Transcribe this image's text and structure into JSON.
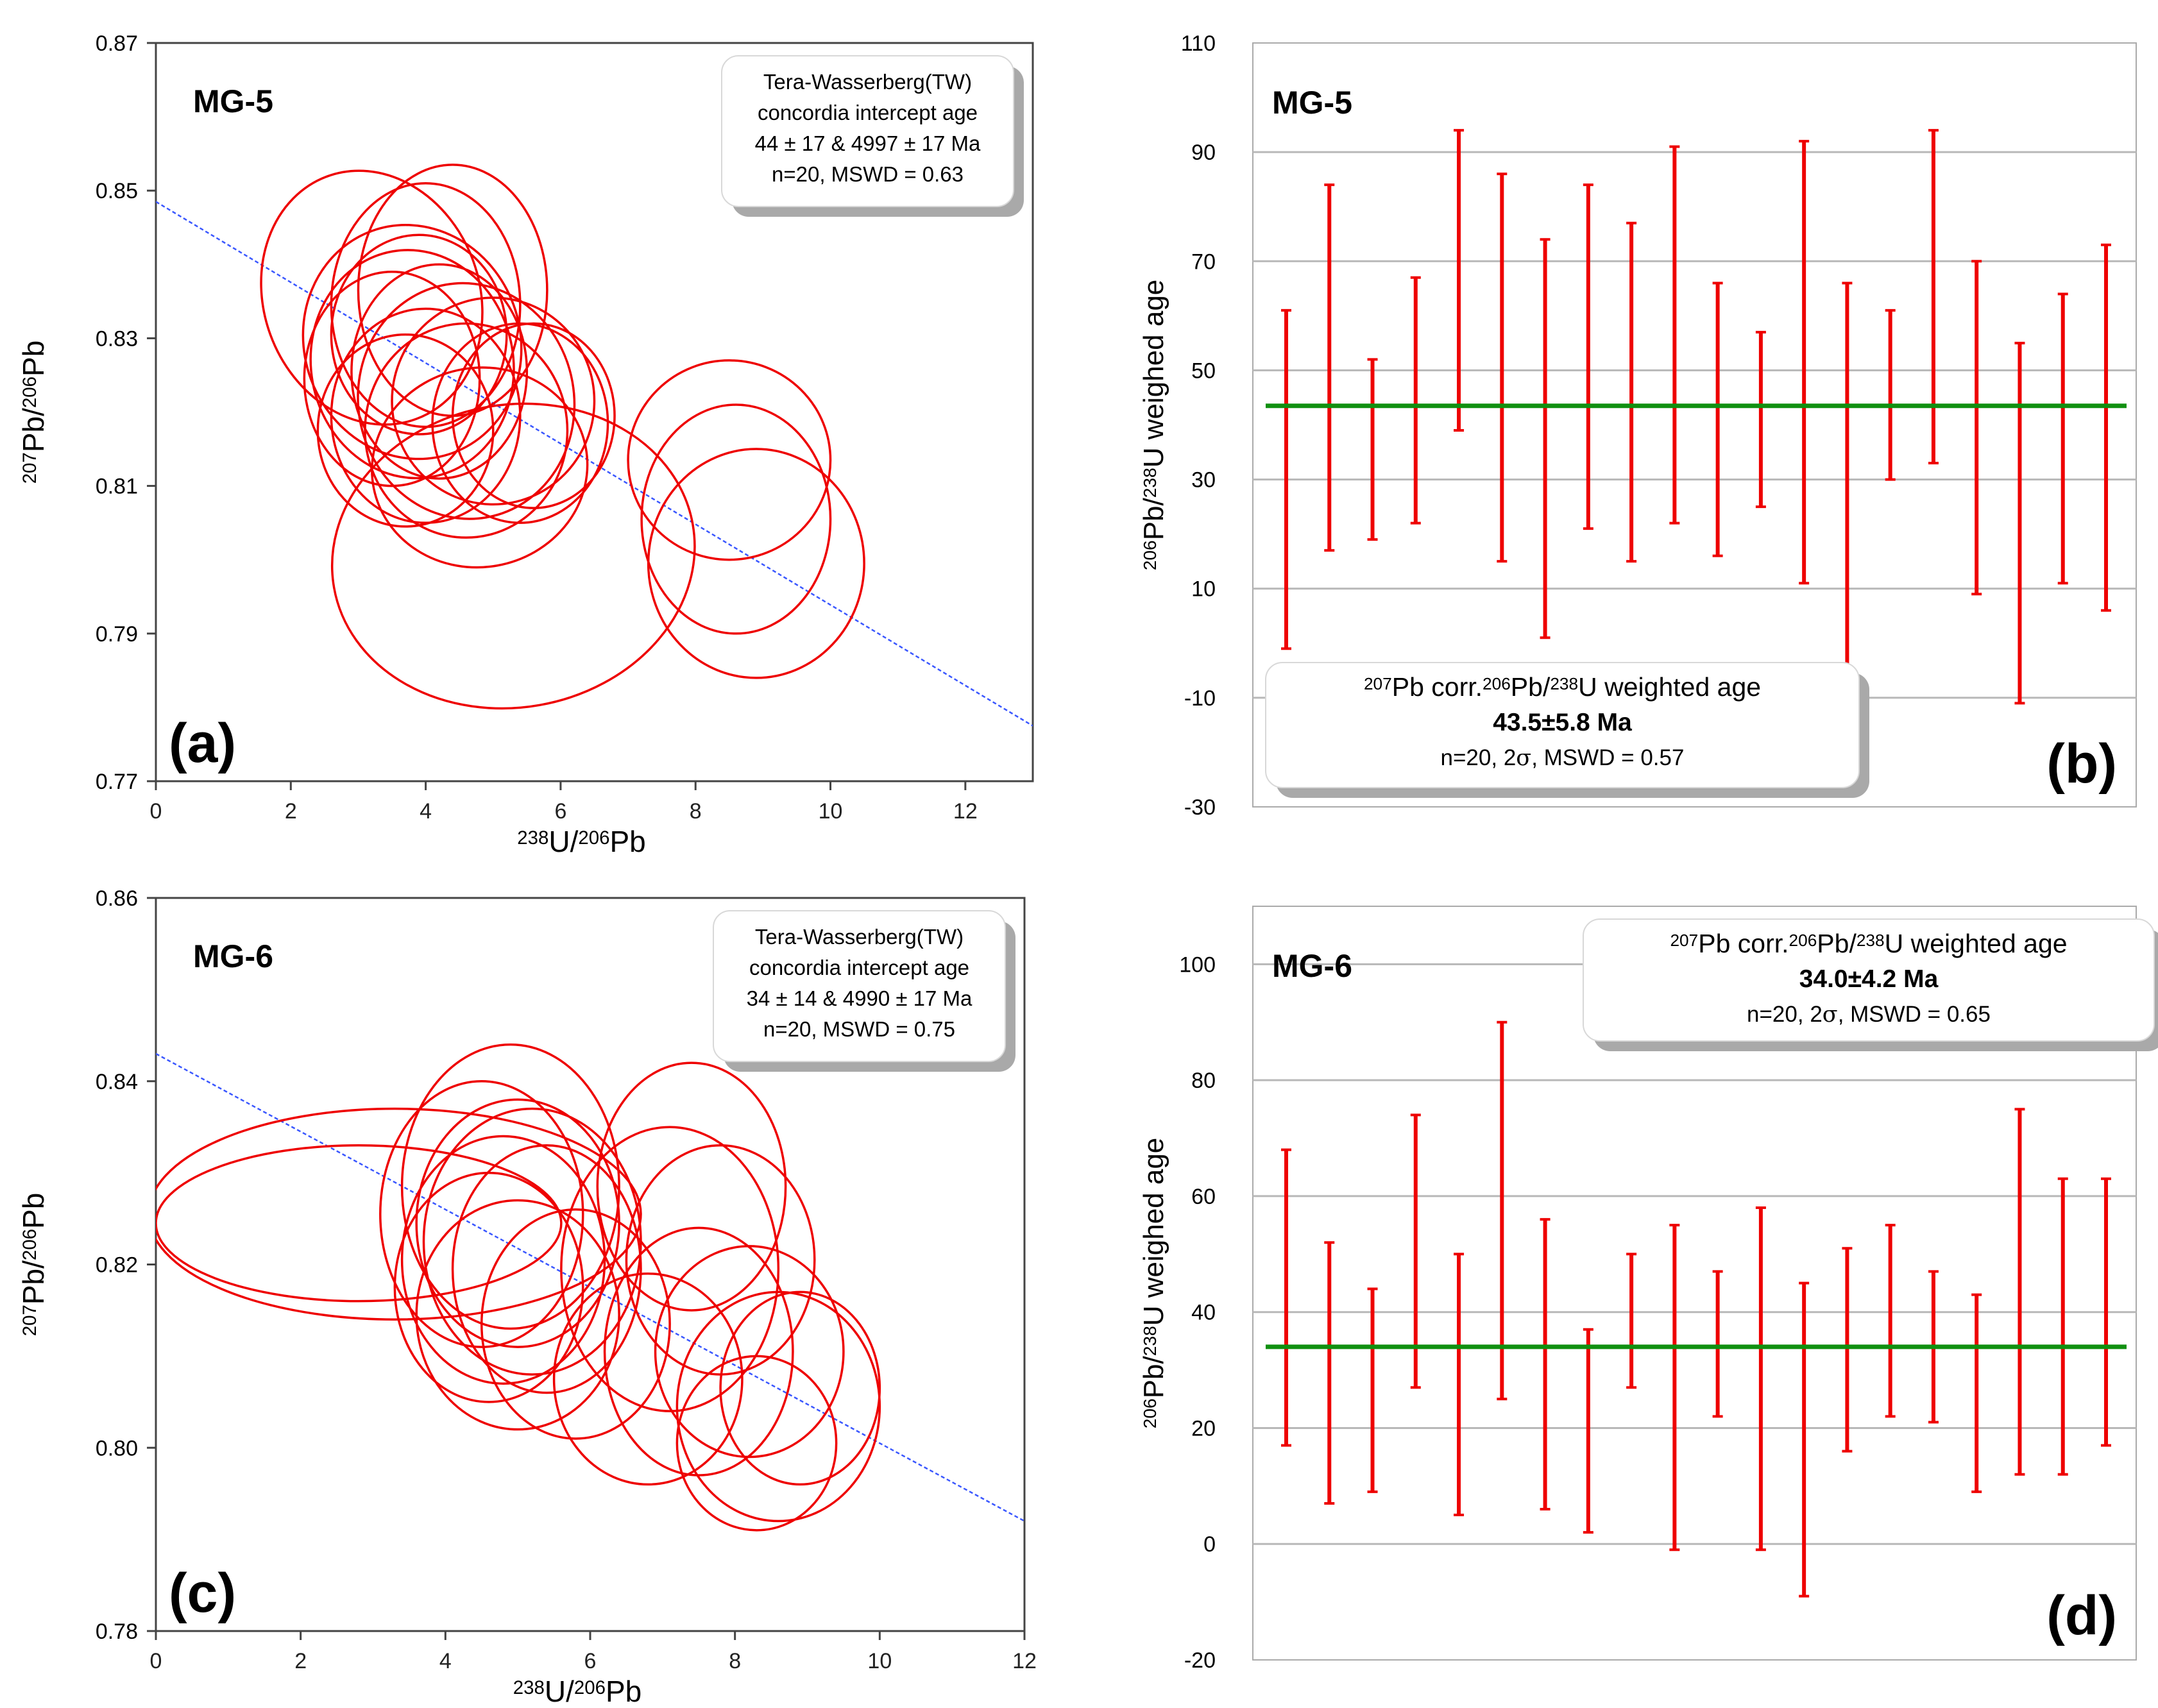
{
  "panels": [
    {
      "id": "a",
      "type": "concordia",
      "sample": "MG-5",
      "panel_label": "(a)",
      "ylabel": [
        "207",
        "Pb/",
        "206",
        "Pb"
      ],
      "xlabel": [
        "238",
        "U/",
        "206",
        "Pb"
      ],
      "xlim": [
        0,
        13
      ],
      "ylim": [
        0.77,
        0.87
      ],
      "xticks": [
        0,
        2,
        4,
        6,
        8,
        10,
        12
      ],
      "yticks": [
        "0.77",
        "0.79",
        "0.81",
        "0.83",
        "0.85",
        "0.87"
      ],
      "ytick_values": [
        0.77,
        0.79,
        0.81,
        0.83,
        0.85,
        0.87
      ],
      "annotation": [
        "Tera-Wasserberg(TW)",
        "concordia intercept age",
        "44 ± 17 & 4997 ± 17 Ma",
        "n=20, MSWD = 0.63"
      ],
      "line": [
        [
          0,
          0.8485
        ],
        [
          13,
          0.7775
        ]
      ],
      "line_color": "#3a57ff",
      "ellipse_color": "#ee0000",
      "ellipses": [
        [
          3.2,
          0.8355,
          1.6,
          0.0175,
          -20
        ],
        [
          3.8,
          0.8295,
          1.6,
          0.016,
          -20
        ],
        [
          4.4,
          0.8365,
          1.4,
          0.017,
          0
        ],
        [
          4.0,
          0.8345,
          1.4,
          0.0165,
          0
        ],
        [
          3.5,
          0.8245,
          1.3,
          0.0145,
          0
        ],
        [
          3.8,
          0.8265,
          1.5,
          0.0155,
          -10
        ],
        [
          4.2,
          0.8255,
          1.3,
          0.0145,
          0
        ],
        [
          4.6,
          0.8215,
          1.6,
          0.016,
          -10
        ],
        [
          4.0,
          0.8195,
          1.4,
          0.0145,
          0
        ],
        [
          3.7,
          0.8175,
          1.3,
          0.013,
          0
        ],
        [
          3.9,
          0.8305,
          1.3,
          0.0135,
          0
        ],
        [
          4.6,
          0.8175,
          1.5,
          0.0145,
          0
        ],
        [
          5.0,
          0.8215,
          1.5,
          0.014,
          0
        ],
        [
          5.4,
          0.8185,
          1.3,
          0.0135,
          0
        ],
        [
          5.6,
          0.8195,
          1.2,
          0.0125,
          0
        ],
        [
          5.3,
          0.8005,
          2.7,
          0.0205,
          -10
        ],
        [
          4.8,
          0.8125,
          1.6,
          0.0135,
          -10
        ],
        [
          8.5,
          0.8135,
          1.5,
          0.0135,
          0
        ],
        [
          8.6,
          0.8055,
          1.4,
          0.0155,
          0
        ],
        [
          8.9,
          0.7995,
          1.6,
          0.0155,
          0
        ]
      ]
    },
    {
      "id": "b",
      "type": "weighted_age",
      "sample": "MG-5",
      "panel_label": "(b)",
      "ylabel": [
        "206",
        "Pb/",
        "238",
        "U weighed age"
      ],
      "ylim": [
        -30,
        110
      ],
      "yticks": [
        "-30",
        "-10",
        "10",
        "30",
        "50",
        "70",
        "90",
        "110"
      ],
      "ytick_values": [
        -30,
        -10,
        10,
        30,
        50,
        70,
        90,
        110
      ],
      "annotation_title": [
        "207",
        "Pb corr.",
        "206",
        "Pb/",
        "238",
        "U weighted age"
      ],
      "annotation_value": "43.5±5.8 Ma",
      "annotation_stats": [
        "n=20, 2",
        "σ",
        ", MSWD = 0.57"
      ],
      "mean_age": 43.5,
      "bar_color": "#ee0000",
      "mean_color": "#109010",
      "bars": [
        [
          -1,
          61
        ],
        [
          17,
          84
        ],
        [
          19,
          52
        ],
        [
          22,
          67
        ],
        [
          39,
          94
        ],
        [
          15,
          86
        ],
        [
          1,
          74
        ],
        [
          21,
          84
        ],
        [
          15,
          77
        ],
        [
          22,
          91
        ],
        [
          16,
          66
        ],
        [
          25,
          57
        ],
        [
          11,
          92
        ],
        [
          -9,
          66
        ],
        [
          30,
          61
        ],
        [
          33,
          94
        ],
        [
          9,
          70
        ],
        [
          -11,
          55
        ],
        [
          11,
          64
        ],
        [
          6,
          73
        ]
      ]
    },
    {
      "id": "c",
      "type": "concordia",
      "sample": "MG-6",
      "panel_label": "(c)",
      "ylabel": [
        "207",
        "Pb/",
        "206",
        "Pb"
      ],
      "xlabel": [
        "238",
        "U/",
        "206",
        "Pb"
      ],
      "xlim": [
        0,
        12
      ],
      "ylim": [
        0.78,
        0.86
      ],
      "xticks": [
        0,
        2,
        4,
        6,
        8,
        10,
        12
      ],
      "yticks": [
        "0.78",
        "0.80",
        "0.82",
        "0.84",
        "0.86"
      ],
      "ytick_values": [
        0.78,
        0.8,
        0.82,
        0.84,
        0.86
      ],
      "annotation": [
        "Tera-Wasserberg(TW)",
        "concordia intercept age",
        "34 ± 14 & 4990 ± 17 Ma",
        "n=20, MSWD = 0.75"
      ],
      "line": [
        [
          0,
          0.843
        ],
        [
          12,
          0.792
        ]
      ],
      "line_color": "#3a57ff",
      "ellipse_color": "#ee0000",
      "ellipses": [
        [
          3.3,
          0.8255,
          3.4,
          0.0115,
          0
        ],
        [
          2.8,
          0.8245,
          2.8,
          0.0085,
          0
        ],
        [
          4.9,
          0.8285,
          1.5,
          0.0155,
          0
        ],
        [
          4.5,
          0.8255,
          1.4,
          0.0145,
          0
        ],
        [
          4.8,
          0.8205,
          1.4,
          0.0135,
          0
        ],
        [
          5.2,
          0.8225,
          1.5,
          0.0145,
          0
        ],
        [
          4.6,
          0.8175,
          1.3,
          0.0125,
          0
        ],
        [
          5.0,
          0.8145,
          1.4,
          0.0125,
          0
        ],
        [
          5.4,
          0.8195,
          1.3,
          0.0135,
          0
        ],
        [
          5.0,
          0.8245,
          1.4,
          0.0135,
          0
        ],
        [
          7.4,
          0.8285,
          1.3,
          0.0135,
          0
        ],
        [
          7.1,
          0.8195,
          1.5,
          0.0155,
          0
        ],
        [
          7.8,
          0.8205,
          1.3,
          0.0125,
          0
        ],
        [
          7.5,
          0.8105,
          1.3,
          0.0135,
          0
        ],
        [
          8.2,
          0.8105,
          1.3,
          0.0115,
          0
        ],
        [
          8.6,
          0.8045,
          1.4,
          0.0125,
          0
        ],
        [
          8.9,
          0.8065,
          1.1,
          0.0105,
          0
        ],
        [
          8.3,
          0.8005,
          1.1,
          0.0095,
          0
        ],
        [
          6.8,
          0.8075,
          1.3,
          0.0115,
          0
        ],
        [
          5.8,
          0.8135,
          1.3,
          0.0125,
          0
        ]
      ]
    },
    {
      "id": "d",
      "type": "weighted_age",
      "sample": "MG-6",
      "panel_label": "(d)",
      "ylabel": [
        "206",
        "Pb/",
        "238",
        "U weighed age"
      ],
      "ylim": [
        -20,
        110
      ],
      "yticks": [
        "-20",
        "0",
        "20",
        "40",
        "60",
        "80",
        "100"
      ],
      "ytick_values": [
        -20,
        0,
        20,
        40,
        60,
        80,
        100
      ],
      "annotation_title": [
        "207",
        "Pb corr.",
        "206",
        "Pb/",
        "238",
        "U weighted age"
      ],
      "annotation_value": "34.0±4.2 Ma",
      "annotation_stats": [
        "n=20, 2",
        "σ",
        ", MSWD = 0.65"
      ],
      "mean_age": 34,
      "bar_color": "#ee0000",
      "mean_color": "#109010",
      "bars": [
        [
          17,
          68
        ],
        [
          7,
          52
        ],
        [
          9,
          44
        ],
        [
          27,
          74
        ],
        [
          5,
          50
        ],
        [
          25,
          90
        ],
        [
          6,
          56
        ],
        [
          2,
          37
        ],
        [
          27,
          50
        ],
        [
          -1,
          55
        ],
        [
          22,
          47
        ],
        [
          -1,
          58
        ],
        [
          -9,
          45
        ],
        [
          16,
          51
        ],
        [
          22,
          55
        ],
        [
          21,
          47
        ],
        [
          9,
          43
        ],
        [
          12,
          75
        ],
        [
          12,
          63
        ],
        [
          17,
          63
        ]
      ]
    }
  ]
}
